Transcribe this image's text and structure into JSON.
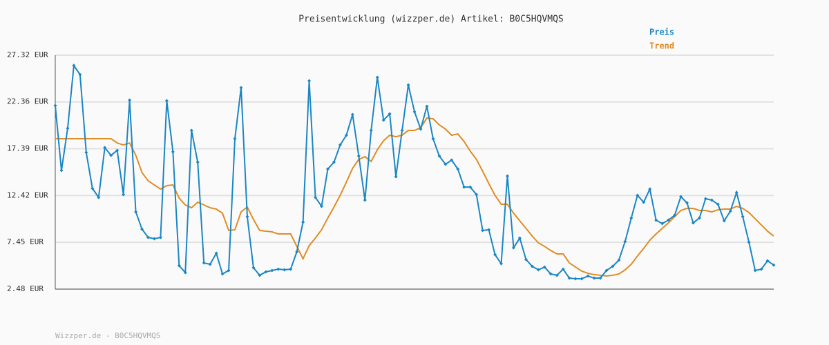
{
  "chart_data": {
    "type": "line",
    "title": "Preisentwicklung (wizzper.de) Artikel: B0C5HQVMQS",
    "footer": "Wizzper.de - B0C5HQVMQS",
    "categories": [
      null,
      null,
      null,
      null,
      null,
      null,
      null,
      null,
      null,
      null,
      null,
      null,
      null,
      null,
      null,
      null,
      null,
      null,
      null,
      null,
      null,
      null,
      null,
      null,
      null,
      null,
      null,
      null,
      null,
      null,
      null,
      null,
      null,
      null,
      null,
      null,
      null,
      null,
      null,
      null,
      null,
      null,
      null,
      null,
      null,
      null,
      null,
      null,
      null,
      null,
      null,
      null,
      null,
      null,
      null,
      null,
      null,
      null,
      null,
      null,
      null,
      null,
      null,
      null,
      null,
      null,
      null,
      null,
      null,
      null,
      null,
      null,
      null,
      null,
      null,
      null,
      null,
      null,
      null,
      null,
      null,
      null,
      null,
      null,
      null,
      null,
      null,
      null,
      null,
      null,
      null,
      null,
      null,
      null,
      null,
      null,
      null,
      null,
      null,
      null,
      null,
      null,
      null,
      null,
      null,
      null,
      null,
      null,
      null,
      null,
      null,
      null,
      null,
      null,
      null,
      null,
      null
    ],
    "series": [
      {
        "name": "Preis",
        "color": "#1b86c4",
        "markers": true,
        "values": [
          21.97,
          15.08,
          19.55,
          26.22,
          25.26,
          16.99,
          13.18,
          12.22,
          17.5,
          16.69,
          17.21,
          12.52,
          22.55,
          10.68,
          8.85,
          7.97,
          7.83,
          7.97,
          22.48,
          17.06,
          4.97,
          4.24,
          19.33,
          15.96,
          5.26,
          5.12,
          6.29,
          4.09,
          4.46,
          18.45,
          23.87,
          10.17,
          4.75,
          3.95,
          4.31,
          4.46,
          4.6,
          4.53,
          4.6,
          6.44,
          9.59,
          24.6,
          12.22,
          11.27,
          15.23,
          15.96,
          17.79,
          18.82,
          21.02,
          16.62,
          11.93,
          19.33,
          24.97,
          20.43,
          21.09,
          14.42,
          19.33,
          24.16,
          21.31,
          19.48,
          21.89,
          18.45,
          16.62,
          15.74,
          16.18,
          15.23,
          13.32,
          13.32,
          12.52,
          8.71,
          8.78,
          6.14,
          5.19,
          14.49,
          6.88,
          7.9,
          5.63,
          4.9,
          4.53,
          4.82,
          4.09,
          3.95,
          4.6,
          3.65,
          3.58,
          3.58,
          3.87,
          3.65,
          3.65,
          4.46,
          4.9,
          5.56,
          7.53,
          10.03,
          12.44,
          11.71,
          13.1,
          9.81,
          9.44,
          9.81,
          10.32,
          12.3,
          11.64,
          9.51,
          10.03,
          12.08,
          11.93,
          11.49,
          9.73,
          10.76,
          12.74,
          10.17,
          7.46,
          4.46,
          4.6,
          5.48,
          5.04
        ]
      },
      {
        "name": "Trend",
        "color": "#e08c24",
        "markers": false,
        "values": [
          18.45,
          18.45,
          18.45,
          18.45,
          18.45,
          18.45,
          18.45,
          18.45,
          18.45,
          18.45,
          18.0,
          17.79,
          18.0,
          16.69,
          14.86,
          13.98,
          13.54,
          13.1,
          13.47,
          13.54,
          12.15,
          11.42,
          11.12,
          11.71,
          11.42,
          11.12,
          10.98,
          10.54,
          8.71,
          8.78,
          10.68,
          11.2,
          9.88,
          8.71,
          8.63,
          8.56,
          8.34,
          8.34,
          8.34,
          7.02,
          5.7,
          7.1,
          7.9,
          8.78,
          10.03,
          11.2,
          12.44,
          13.84,
          15.3,
          16.25,
          16.55,
          16.03,
          17.28,
          18.23,
          18.82,
          18.67,
          18.82,
          19.33,
          19.33,
          19.62,
          20.65,
          20.57,
          19.92,
          19.48,
          18.82,
          18.96,
          18.16,
          17.13,
          16.25,
          15.01,
          13.69,
          12.44,
          11.49,
          11.49,
          10.54,
          9.73,
          8.93,
          8.12,
          7.39,
          7.02,
          6.58,
          6.22,
          6.22,
          5.26,
          4.82,
          4.39,
          4.16,
          4.02,
          3.95,
          3.87,
          3.95,
          4.09,
          4.53,
          5.12,
          6.0,
          6.8,
          7.68,
          8.34,
          8.93,
          9.51,
          10.17,
          10.83,
          11.05,
          11.05,
          10.83,
          10.83,
          10.68,
          10.9,
          10.98,
          10.98,
          11.27,
          11.05,
          10.61,
          9.95,
          9.29,
          8.63,
          8.12
        ]
      }
    ],
    "ylim": [
      2.48,
      27.32
    ],
    "yticks": [
      {
        "value": 2.48,
        "label": "2.48 EUR"
      },
      {
        "value": 7.45,
        "label": "7.45 EUR"
      },
      {
        "value": 12.42,
        "label": "12.42 EUR"
      },
      {
        "value": 17.39,
        "label": "17.39 EUR"
      },
      {
        "value": 22.36,
        "label": "22.36 EUR"
      },
      {
        "value": 27.32,
        "label": "27.32 EUR"
      }
    ],
    "grid": true
  }
}
